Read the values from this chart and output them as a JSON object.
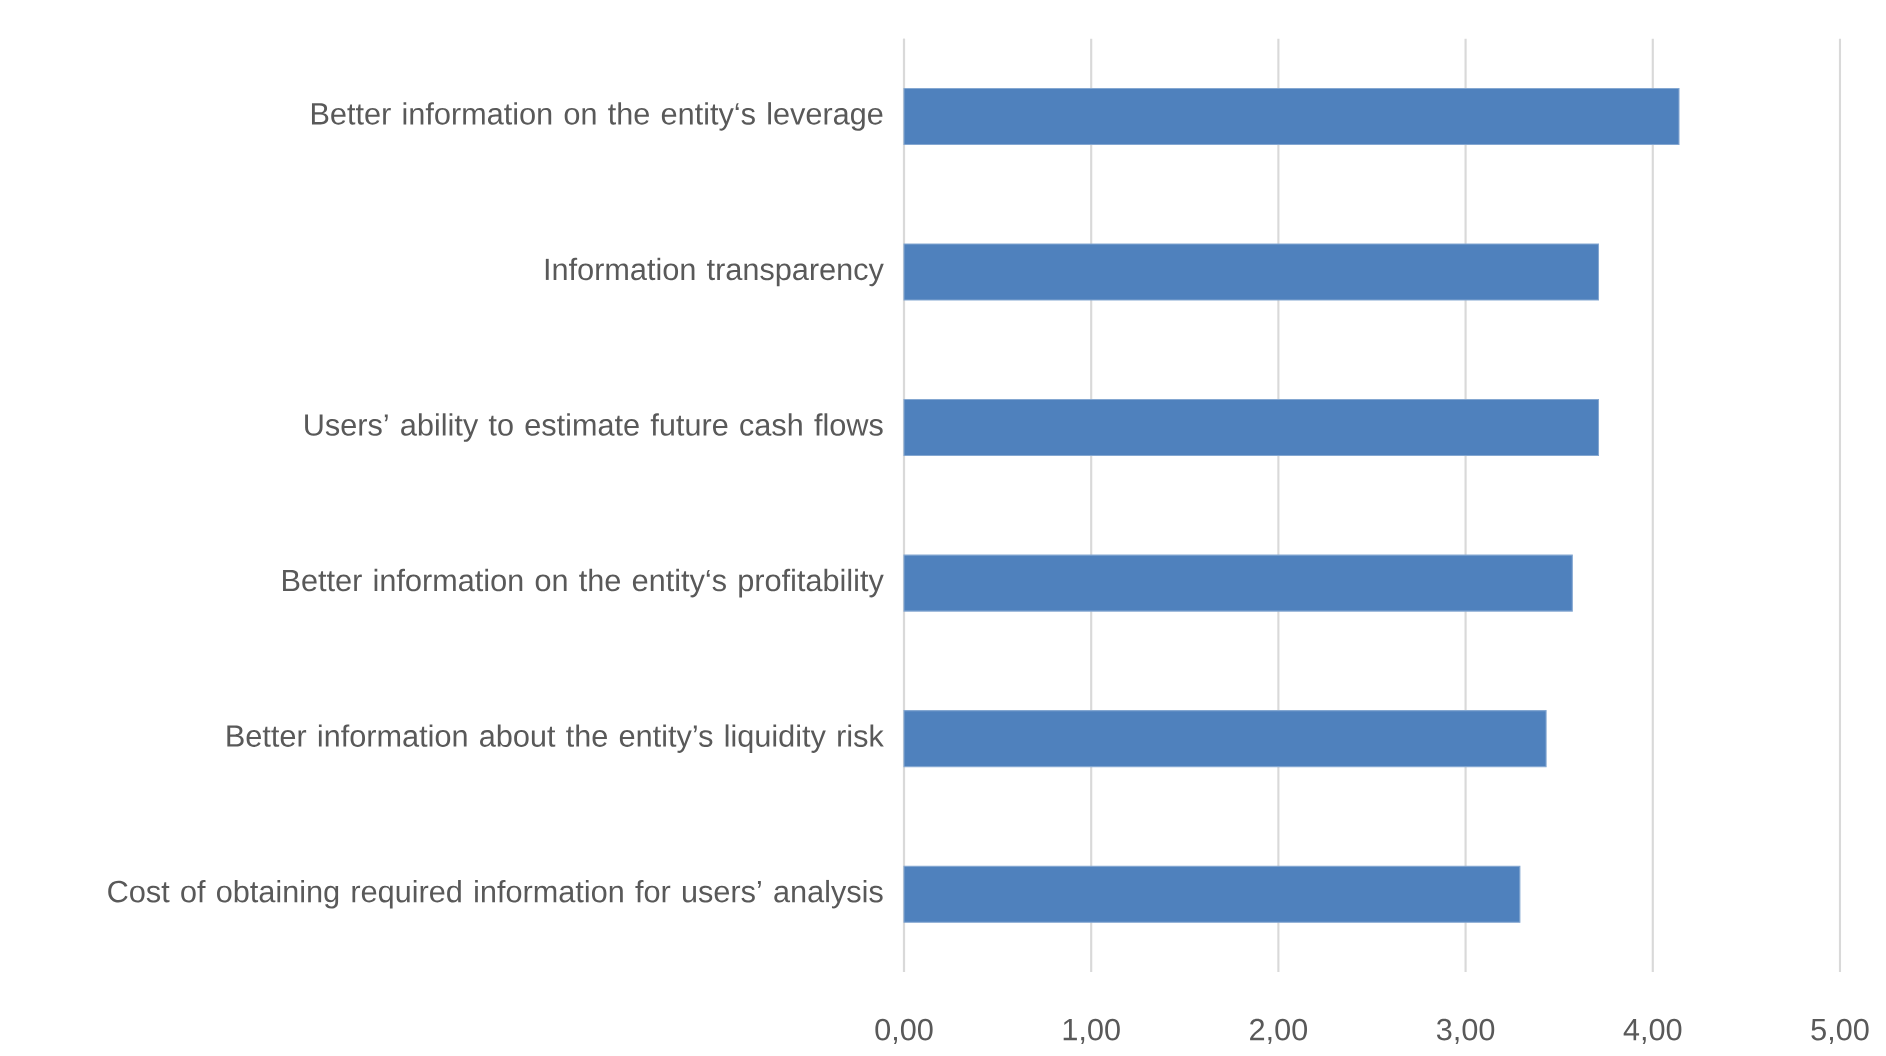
{
  "chart_data": {
    "type": "bar",
    "orientation": "horizontal",
    "categories": [
      "Better information on the entity‘s leverage",
      "Information transparency",
      "Users’ ability to estimate future cash flows",
      "Better information on the entity‘s profitability",
      "Better information about the entity’s liquidity risk",
      "Cost of obtaining required information for users’ analysis"
    ],
    "values": [
      4.14,
      3.71,
      3.71,
      3.57,
      3.43,
      3.29
    ],
    "color": "#4f81bd",
    "xlim": [
      0,
      5
    ],
    "xticks": [
      {
        "value": 0,
        "label": "0,00"
      },
      {
        "value": 1,
        "label": "1,00"
      },
      {
        "value": 2,
        "label": "2,00"
      },
      {
        "value": 3,
        "label": "3,00"
      },
      {
        "value": 4,
        "label": "4,00"
      },
      {
        "value": 5,
        "label": "5,00"
      }
    ],
    "grid": "x"
  }
}
